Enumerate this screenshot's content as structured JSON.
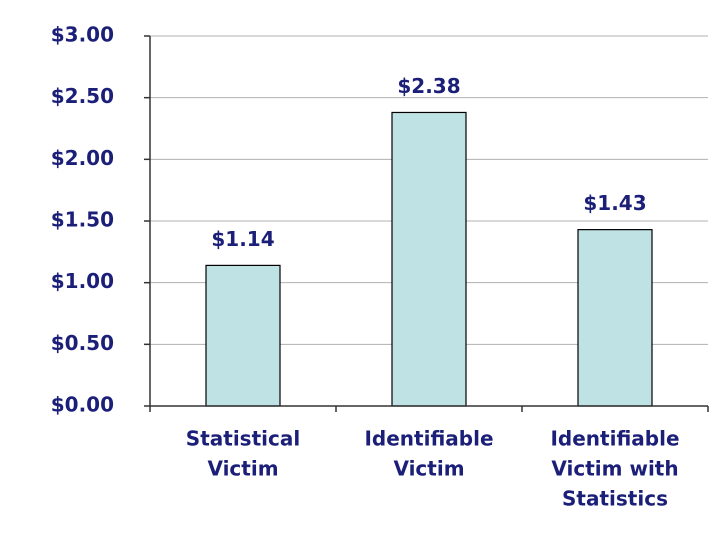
{
  "chart_data": {
    "type": "bar",
    "categories": [
      [
        "Statistical",
        "Victim"
      ],
      [
        "Identifiable",
        "Victim"
      ],
      [
        "Identifiable",
        "Victim with",
        "Statistics"
      ]
    ],
    "values": [
      1.14,
      2.38,
      1.43
    ],
    "value_labels": [
      "$1.14",
      "$2.38",
      "$1.43"
    ],
    "color": "#bfe2e4",
    "ylim": [
      0,
      3
    ],
    "yticks": [
      {
        "value": 0,
        "label": "$0.00"
      },
      {
        "value": 0.5,
        "label": "$0.50"
      },
      {
        "value": 1,
        "label": "$1.00"
      },
      {
        "value": 1.5,
        "label": "$1.50"
      },
      {
        "value": 2,
        "label": "$2.00"
      },
      {
        "value": 2.5,
        "label": "$2.50"
      },
      {
        "value": 3,
        "label": "$3.00"
      }
    ],
    "grid": true
  }
}
